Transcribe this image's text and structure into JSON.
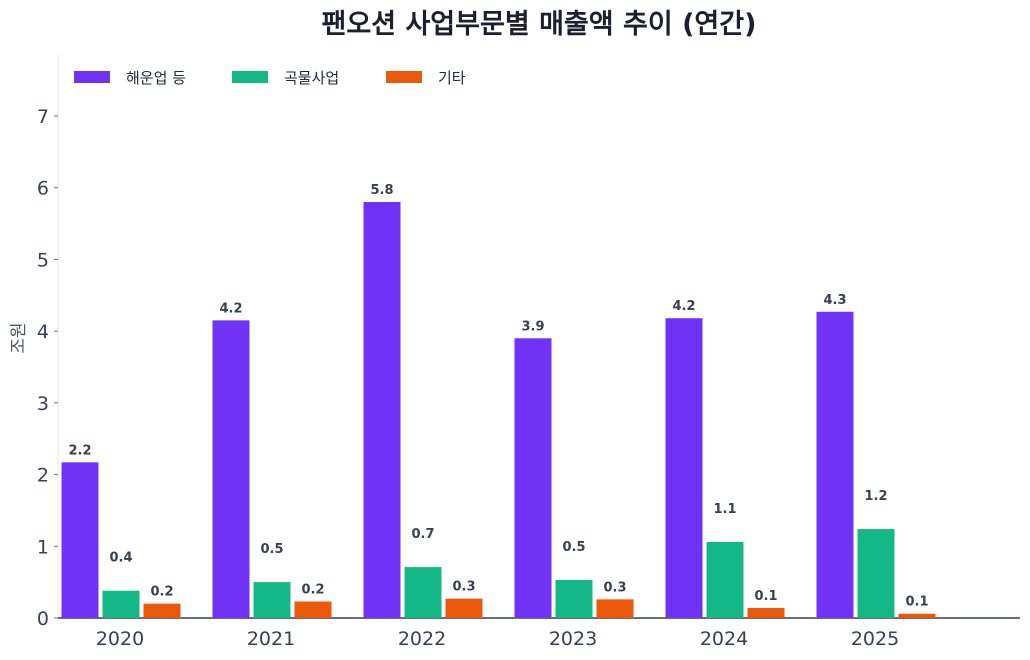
{
  "chart_data": {
    "type": "bar",
    "title": "팬오션 사업부문별 매출액 추이 (연간)",
    "xlabel": "",
    "ylabel": "조원",
    "ylim": [
      0,
      7.85
    ],
    "yticks": [
      0,
      1,
      2,
      3,
      4,
      5,
      6,
      7
    ],
    "categories": [
      "2020",
      "2021",
      "2022",
      "2023",
      "2024",
      "2025"
    ],
    "series": [
      {
        "name": "해운업 등",
        "color": "#7033f5",
        "values": [
          2.17,
          4.15,
          5.8,
          3.9,
          4.18,
          4.27
        ],
        "labels": [
          "2.2",
          "4.2",
          "5.8",
          "3.9",
          "4.2",
          "4.3"
        ]
      },
      {
        "name": "곡물사업",
        "color": "#14b886",
        "values": [
          0.38,
          0.5,
          0.71,
          0.53,
          1.06,
          1.24
        ],
        "labels": [
          "0.4",
          "0.5",
          "0.7",
          "0.5",
          "1.1",
          "1.2"
        ]
      },
      {
        "name": "기타",
        "color": "#ea580c",
        "values": [
          0.2,
          0.23,
          0.27,
          0.26,
          0.14,
          0.06
        ],
        "labels": [
          "0.2",
          "0.2",
          "0.3",
          "0.3",
          "0.1",
          "0.1"
        ]
      }
    ],
    "legend_position": "top-left",
    "grid": false
  }
}
